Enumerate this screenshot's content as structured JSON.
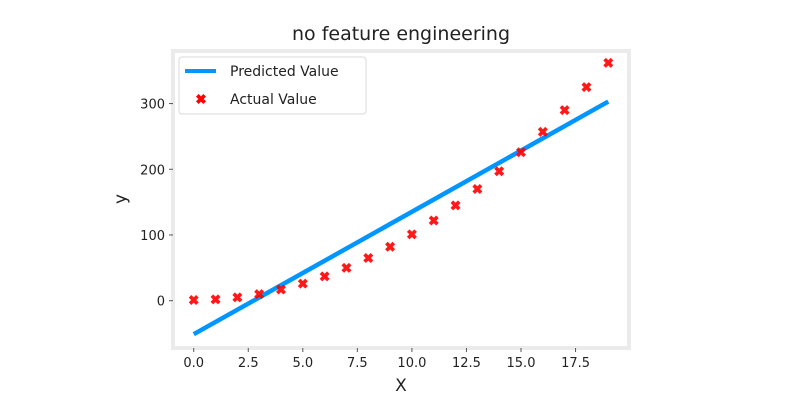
{
  "chart_data": {
    "type": "line",
    "title": "no feature engineering",
    "xlabel": "X",
    "ylabel": "y",
    "xlim": [
      -0.95,
      19.95
    ],
    "ylim": [
      -72,
      380
    ],
    "xticks": [
      0,
      2.5,
      5,
      7.5,
      10,
      12.5,
      15,
      17.5
    ],
    "xtick_labels": [
      "0.0",
      "2.5",
      "5.0",
      "7.5",
      "10.0",
      "12.5",
      "15.0",
      "17.5"
    ],
    "yticks": [
      0,
      100,
      200,
      300
    ],
    "ytick_labels": [
      "0",
      "100",
      "200",
      "300"
    ],
    "grid": false,
    "legend_position": "top-left",
    "series": [
      {
        "name": "Predicted Value",
        "kind": "line",
        "color": "#0096ff",
        "x": [
          0,
          19
        ],
        "y": [
          -51,
          303
        ]
      },
      {
        "name": "Actual Value",
        "kind": "scatter",
        "marker": "X",
        "color": "#ff0000",
        "x": [
          0,
          1,
          2,
          3,
          4,
          5,
          6,
          7,
          8,
          9,
          10,
          11,
          12,
          13,
          14,
          15,
          16,
          17,
          18,
          19
        ],
        "y": [
          1,
          2,
          5,
          10,
          17,
          26,
          37,
          50,
          65,
          82,
          101,
          122,
          145,
          170,
          197,
          226,
          257,
          290,
          325,
          362
        ]
      }
    ]
  }
}
